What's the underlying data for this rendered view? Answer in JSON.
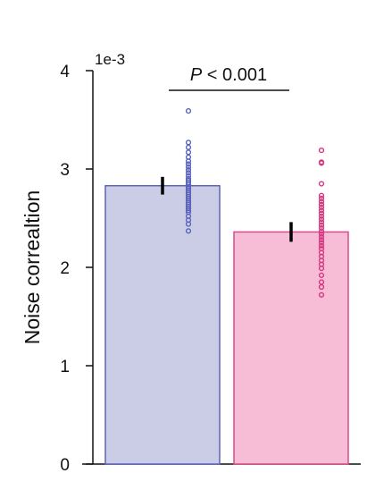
{
  "chart_data": {
    "type": "bar",
    "ylabel": "Noise correaltion",
    "y_multiplier": "1e-3",
    "ylim": [
      0,
      4
    ],
    "y_ticks": [
      0,
      1,
      2,
      3,
      4
    ],
    "y_tick_labels": [
      "0",
      "1",
      "2",
      "3",
      "4"
    ],
    "categories": [
      "",
      ""
    ],
    "values": [
      2.83,
      2.36
    ],
    "error": [
      0.09,
      0.1
    ],
    "bar_colors": [
      "#cbcde6",
      "#f7bcd6"
    ],
    "bar_edge_colors": [
      "#5a63b8",
      "#d94a8c"
    ],
    "dot_colors": [
      "#5a63b8",
      "#d6367f"
    ],
    "points": [
      [
        3.59,
        3.27,
        3.22,
        3.17,
        3.12,
        3.08,
        3.05,
        3.02,
        2.99,
        2.96,
        2.93,
        2.9,
        2.88,
        2.86,
        2.84,
        2.82,
        2.8,
        2.78,
        2.76,
        2.74,
        2.72,
        2.7,
        2.68,
        2.66,
        2.64,
        2.62,
        2.6,
        2.58,
        2.56,
        2.52,
        2.48,
        2.44,
        2.37
      ],
      [
        3.19,
        3.07,
        3.06,
        2.85,
        2.73,
        2.7,
        2.67,
        2.64,
        2.61,
        2.58,
        2.55,
        2.52,
        2.49,
        2.46,
        2.43,
        2.4,
        2.37,
        2.34,
        2.31,
        2.28,
        2.25,
        2.22,
        2.19,
        2.15,
        2.11,
        2.07,
        2.03,
        1.99,
        1.92,
        1.85,
        1.8,
        1.72
      ]
    ],
    "annotation": {
      "label_italic": "P",
      "label_rest": " < 0.001"
    },
    "grid": false,
    "legend": "none"
  }
}
